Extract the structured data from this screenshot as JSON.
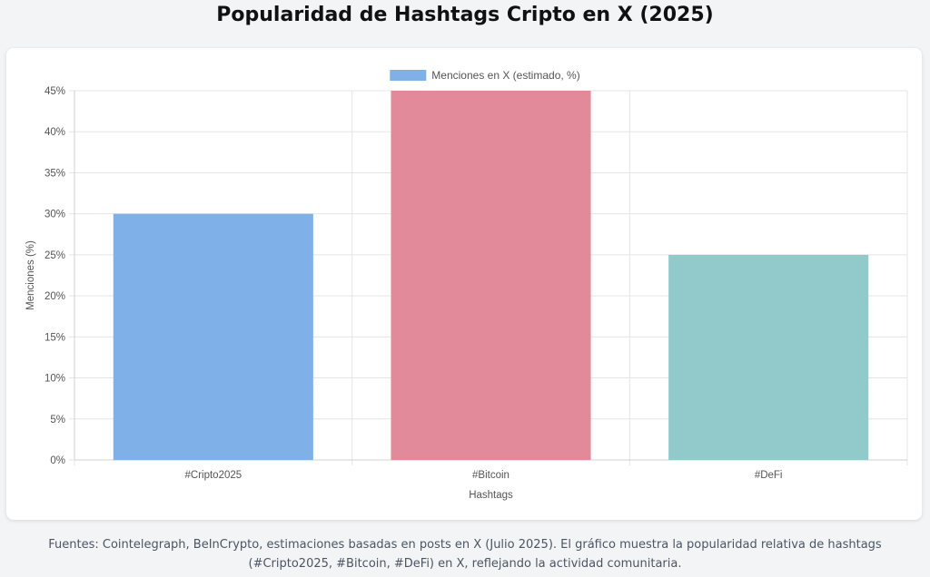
{
  "page_title": "Popularidad de Hashtags Cripto en X (2025)",
  "caption": "Fuentes: Cointelegraph, BeInCrypto, estimaciones basadas en posts en X (Julio 2025). El gráfico muestra la popularidad relativa de hashtags (#Cripto2025, #Bitcoin, #DeFi) en X, reflejando la actividad comunitaria.",
  "chart_data": {
    "type": "bar",
    "categories": [
      "#Cripto2025",
      "#Bitcoin",
      "#DeFi"
    ],
    "series": [
      {
        "name": "Menciones en X (estimado, %)",
        "values": [
          30,
          45,
          25
        ],
        "colors": [
          "#7fb0e8",
          "#e38a9a",
          "#92c9ca"
        ]
      }
    ],
    "xlabel": "Hashtags",
    "ylabel": "Menciones (%)",
    "ylim": [
      0,
      45
    ],
    "yticks": [
      0,
      5,
      10,
      15,
      20,
      25,
      30,
      35,
      40,
      45
    ],
    "ytick_suffix": "%",
    "legend_position": "top",
    "legend_color": "#7fb0e8",
    "grid": true
  }
}
